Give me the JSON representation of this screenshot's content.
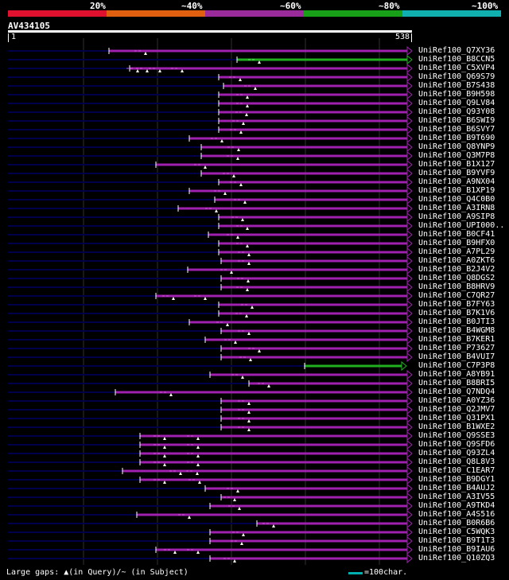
{
  "legend": {
    "labels": [
      "20%",
      "~40%",
      "~60%",
      "~80%",
      "~100%"
    ],
    "colors": [
      "#e0102f",
      "#e06010",
      "#9b2a9b",
      "#19a019",
      "#10b0b0"
    ]
  },
  "query": {
    "name": "AV434105",
    "start": "1",
    "end": "538"
  },
  "hits": [
    {
      "id": "UniRef100_Q7XY36",
      "start": 137,
      "color": "purple",
      "marks": [
        183
      ]
    },
    {
      "id": "UniRef100_B8CCN5",
      "start": 298,
      "color": "green",
      "marks": [
        326
      ]
    },
    {
      "id": "UniRef100_C5XVP4",
      "start": 163,
      "color": "purple",
      "marks": [
        173,
        185,
        201,
        229
      ]
    },
    {
      "id": "UniRef100_Q69S79",
      "start": 275,
      "color": "purple",
      "marks": [
        302
      ]
    },
    {
      "id": "UniRef100_B7S438",
      "start": 281,
      "color": "purple",
      "marks": [
        321
      ]
    },
    {
      "id": "UniRef100_B9H598",
      "start": 275,
      "color": "purple",
      "marks": [
        311
      ]
    },
    {
      "id": "UniRef100_Q9LV84",
      "start": 275,
      "color": "purple",
      "marks": [
        311
      ]
    },
    {
      "id": "UniRef100_Q93Y08",
      "start": 275,
      "color": "purple",
      "marks": [
        310
      ]
    },
    {
      "id": "UniRef100_B6SWI9",
      "start": 275,
      "color": "purple",
      "marks": [
        306
      ]
    },
    {
      "id": "UniRef100_B6SVY7",
      "start": 275,
      "color": "purple",
      "marks": [
        303
      ]
    },
    {
      "id": "UniRef100_B9T690",
      "start": 238,
      "color": "purple",
      "marks": [
        279
      ]
    },
    {
      "id": "UniRef100_Q8YNP9",
      "start": 253,
      "color": "purple",
      "marks": [
        300
      ]
    },
    {
      "id": "UniRef100_Q3M7P8",
      "start": 253,
      "color": "purple",
      "marks": [
        299
      ]
    },
    {
      "id": "UniRef100_B1X127",
      "start": 196,
      "color": "purple",
      "marks": [
        258
      ]
    },
    {
      "id": "UniRef100_B9YVF9",
      "start": 253,
      "color": "purple",
      "marks": [
        294
      ]
    },
    {
      "id": "UniRef100_A9NX04",
      "start": 275,
      "color": "purple",
      "marks": [
        303
      ]
    },
    {
      "id": "UniRef100_B1XP19",
      "start": 238,
      "color": "purple",
      "marks": [
        283
      ]
    },
    {
      "id": "UniRef100_Q4C0B0",
      "start": 270,
      "color": "purple",
      "marks": [
        308
      ]
    },
    {
      "id": "UniRef100_A3IRN8",
      "start": 224,
      "color": "purple",
      "marks": [
        272
      ]
    },
    {
      "id": "UniRef100_A9SIP8",
      "start": 275,
      "color": "purple",
      "marks": [
        305
      ]
    },
    {
      "id": "UniRef100_UPI000..",
      "start": 275,
      "color": "purple",
      "marks": [
        311
      ]
    },
    {
      "id": "UniRef100_B0CF41",
      "start": 262,
      "color": "purple",
      "marks": [
        299
      ]
    },
    {
      "id": "UniRef100_B9HFX0",
      "start": 275,
      "color": "purple",
      "marks": [
        311
      ]
    },
    {
      "id": "UniRef100_A7PL29",
      "start": 275,
      "color": "purple",
      "marks": [
        313
      ]
    },
    {
      "id": "UniRef100_A0ZKT6",
      "start": 278,
      "color": "purple",
      "marks": [
        313
      ]
    },
    {
      "id": "UniRef100_B2J4V2",
      "start": 236,
      "color": "purple",
      "marks": [
        291
      ]
    },
    {
      "id": "UniRef100_Q8DGS2",
      "start": 278,
      "color": "purple",
      "marks": [
        312
      ]
    },
    {
      "id": "UniRef100_B8HRV9",
      "start": 278,
      "color": "purple",
      "marks": [
        311
      ]
    },
    {
      "id": "UniRef100_C7QR27",
      "start": 196,
      "color": "purple",
      "marks": [
        218,
        258
      ]
    },
    {
      "id": "UniRef100_B7FY63",
      "start": 275,
      "color": "purple",
      "marks": [
        317
      ]
    },
    {
      "id": "UniRef100_B7K1V6",
      "start": 275,
      "color": "purple",
      "marks": [
        310
      ]
    },
    {
      "id": "UniRef100_B0JTI3",
      "start": 238,
      "color": "purple",
      "marks": [
        286
      ]
    },
    {
      "id": "UniRef100_B4WGM8",
      "start": 278,
      "color": "purple",
      "marks": [
        313
      ]
    },
    {
      "id": "UniRef100_B7KER1",
      "start": 258,
      "color": "purple",
      "marks": [
        296
      ]
    },
    {
      "id": "UniRef100_P73627",
      "start": 278,
      "color": "purple",
      "marks": [
        326
      ]
    },
    {
      "id": "UniRef100_B4VUI7",
      "start": 278,
      "color": "purple",
      "marks": [
        315
      ]
    },
    {
      "id": "UniRef100_C7P3P8",
      "start": 383,
      "end": 505,
      "color": "green",
      "marks": []
    },
    {
      "id": "UniRef100_A8YB91",
      "start": 264,
      "color": "purple",
      "marks": [
        305
      ]
    },
    {
      "id": "UniRef100_B8BRI5",
      "start": 313,
      "color": "purple",
      "marks": [
        338
      ]
    },
    {
      "id": "UniRef100_Q7NDQ4",
      "start": 145,
      "color": "purple",
      "marks": [
        215
      ]
    },
    {
      "id": "UniRef100_A0YZ36",
      "start": 278,
      "color": "purple",
      "marks": [
        313
      ]
    },
    {
      "id": "UniRef100_Q2JMV7",
      "start": 278,
      "color": "purple",
      "marks": [
        313
      ]
    },
    {
      "id": "UniRef100_Q31PX1",
      "start": 278,
      "color": "purple",
      "marks": [
        313
      ]
    },
    {
      "id": "UniRef100_B1WXE2",
      "start": 278,
      "color": "purple",
      "marks": [
        313
      ]
    },
    {
      "id": "UniRef100_Q9SSE3",
      "start": 176,
      "color": "purple",
      "marks": [
        207,
        249
      ]
    },
    {
      "id": "UniRef100_Q9SFD6",
      "start": 176,
      "color": "purple",
      "marks": [
        207,
        249
      ]
    },
    {
      "id": "UniRef100_Q93ZL4",
      "start": 176,
      "color": "purple",
      "marks": [
        207,
        249
      ]
    },
    {
      "id": "UniRef100_Q8L8V3",
      "start": 176,
      "color": "purple",
      "marks": [
        207,
        249
      ]
    },
    {
      "id": "UniRef100_C1EAR7",
      "start": 154,
      "color": "purple",
      "marks": [
        227,
        248
      ]
    },
    {
      "id": "UniRef100_B9DGY1",
      "start": 176,
      "color": "purple",
      "marks": [
        207,
        251
      ]
    },
    {
      "id": "UniRef100_B4AUJ2",
      "start": 258,
      "color": "purple",
      "marks": [
        299
      ]
    },
    {
      "id": "UniRef100_A3IV55",
      "start": 278,
      "color": "purple",
      "marks": [
        295
      ]
    },
    {
      "id": "UniRef100_A9TKD4",
      "start": 264,
      "color": "purple",
      "marks": [
        301
      ]
    },
    {
      "id": "UniRef100_A4S516",
      "start": 172,
      "color": "purple",
      "marks": [
        238
      ]
    },
    {
      "id": "UniRef100_B0R6B6",
      "start": 323,
      "color": "purple",
      "marks": [
        344
      ]
    },
    {
      "id": "UniRef100_C5WQK3",
      "start": 264,
      "color": "purple",
      "marks": [
        306
      ]
    },
    {
      "id": "UniRef100_B9T1T3",
      "start": 264,
      "color": "purple",
      "marks": [
        304
      ]
    },
    {
      "id": "UniRef100_B9IAU6",
      "start": 196,
      "color": "purple",
      "marks": [
        220,
        249
      ]
    },
    {
      "id": "UniRef100_Q10ZQ3",
      "start": 264,
      "color": "purple",
      "marks": [
        295
      ]
    }
  ],
  "footer": {
    "gaps_text": "Large gaps: ▲(in Query)/~ (in Subject)",
    "scale_text": "=100char."
  }
}
